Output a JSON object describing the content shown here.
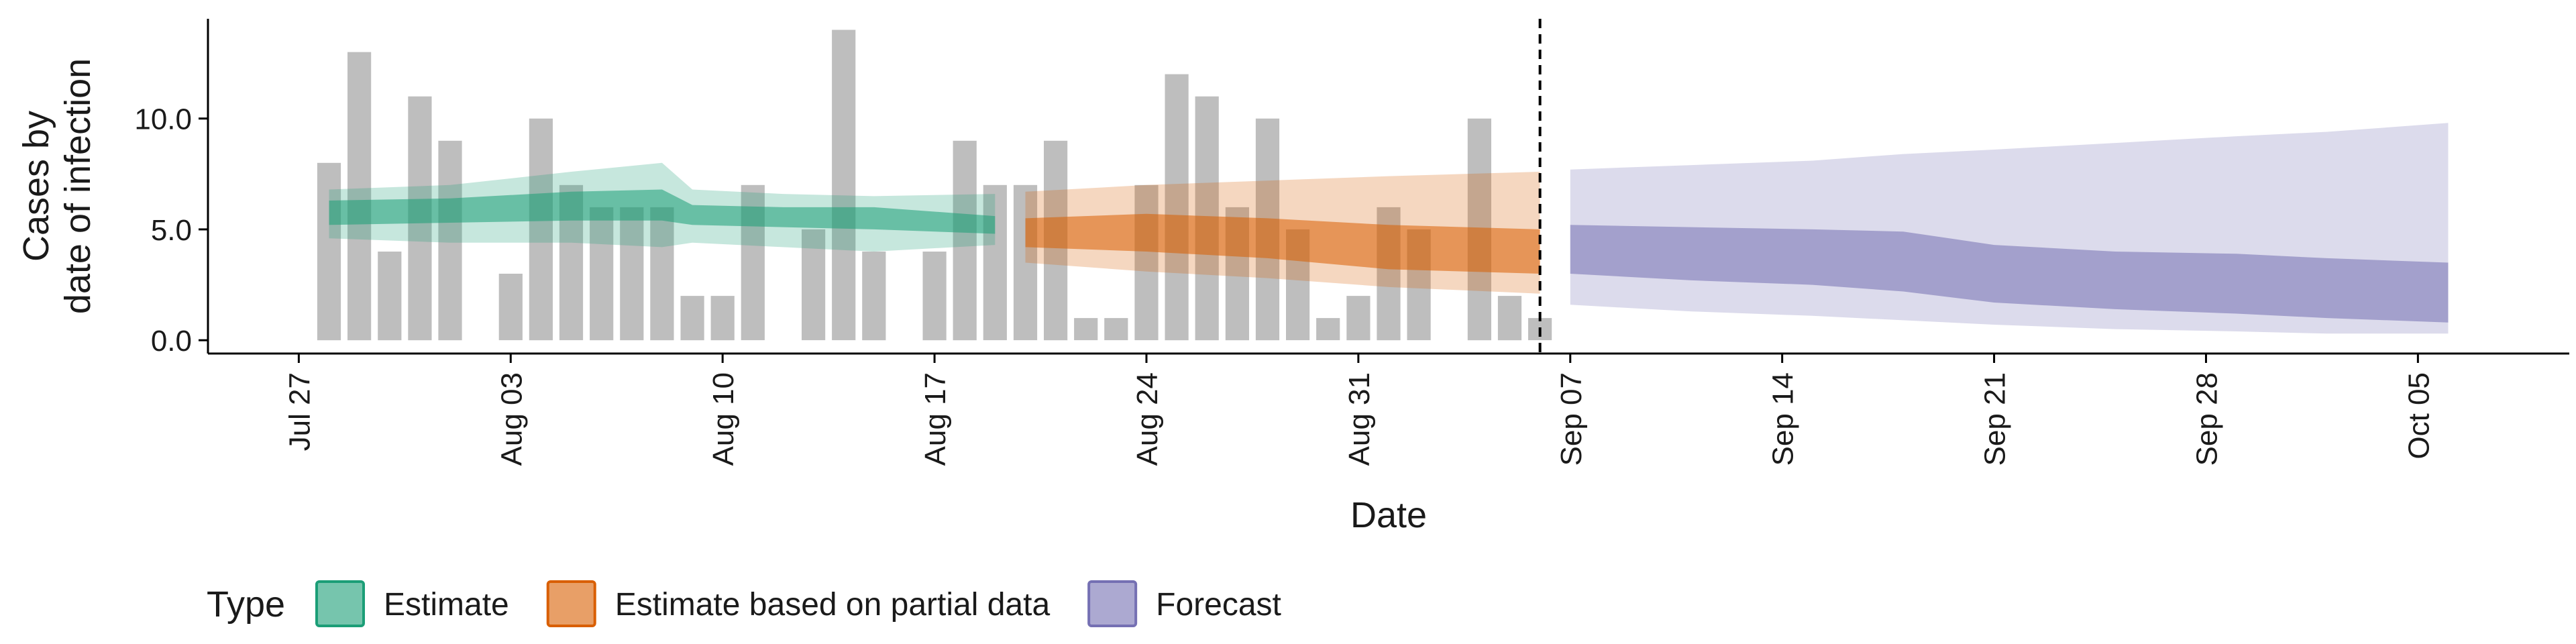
{
  "chart_data": {
    "type": "bar",
    "x_axis_label": "Date",
    "y_axis_label": [
      "Cases by",
      "date of infection"
    ],
    "x_range": [
      "2025-07-24",
      "2025-10-10"
    ],
    "y_range": [
      -0.6,
      14.5
    ],
    "x_ticks": [
      {
        "date": "2025-07-27",
        "label": "Jul 27"
      },
      {
        "date": "2025-08-03",
        "label": "Aug 03"
      },
      {
        "date": "2025-08-10",
        "label": "Aug 10"
      },
      {
        "date": "2025-08-17",
        "label": "Aug 17"
      },
      {
        "date": "2025-08-24",
        "label": "Aug 24"
      },
      {
        "date": "2025-08-31",
        "label": "Aug 31"
      },
      {
        "date": "2025-09-07",
        "label": "Sep 07"
      },
      {
        "date": "2025-09-14",
        "label": "Sep 14"
      },
      {
        "date": "2025-09-21",
        "label": "Sep 21"
      },
      {
        "date": "2025-09-28",
        "label": "Sep 28"
      },
      {
        "date": "2025-10-05",
        "label": "Oct 05"
      }
    ],
    "y_ticks": [
      {
        "value": 0,
        "label": "0.0"
      },
      {
        "value": 5,
        "label": "5.0"
      },
      {
        "value": 10,
        "label": "10.0"
      }
    ],
    "reported_cases": {
      "color": "#bebebe",
      "dates": [
        "2025-07-28",
        "2025-07-29",
        "2025-07-30",
        "2025-07-31",
        "2025-08-01",
        "2025-08-02",
        "2025-08-03",
        "2025-08-04",
        "2025-08-05",
        "2025-08-06",
        "2025-08-07",
        "2025-08-08",
        "2025-08-09",
        "2025-08-10",
        "2025-08-11",
        "2025-08-12",
        "2025-08-13",
        "2025-08-14",
        "2025-08-15",
        "2025-08-16",
        "2025-08-17",
        "2025-08-18",
        "2025-08-19",
        "2025-08-20",
        "2025-08-21",
        "2025-08-22",
        "2025-08-23",
        "2025-08-24",
        "2025-08-25",
        "2025-08-26",
        "2025-08-27",
        "2025-08-28",
        "2025-08-29",
        "2025-08-30",
        "2025-08-31",
        "2025-09-01",
        "2025-09-02",
        "2025-09-03",
        "2025-09-04",
        "2025-09-05",
        "2025-09-06"
      ],
      "values": [
        8,
        13,
        4,
        11,
        9,
        0,
        3,
        10,
        7,
        6,
        6,
        6,
        2,
        2,
        7,
        0,
        5,
        14,
        4,
        0,
        4,
        9,
        7,
        7,
        9,
        1,
        1,
        7,
        12,
        11,
        6,
        10,
        5,
        1,
        2,
        6,
        5,
        0,
        10,
        2,
        1
      ]
    },
    "forecast_divider_date": "2025-09-06",
    "series": [
      {
        "name": "Estimate",
        "color": "#1b9e77",
        "dates": [
          "2025-07-28",
          "2025-08-01",
          "2025-08-05",
          "2025-08-08",
          "2025-08-09",
          "2025-08-12",
          "2025-08-15",
          "2025-08-19"
        ],
        "lower90": [
          4.6,
          4.4,
          4.4,
          4.2,
          4.4,
          4.2,
          4.0,
          4.3
        ],
        "upper90": [
          6.8,
          7.0,
          7.6,
          8.0,
          6.8,
          6.6,
          6.5,
          6.6
        ],
        "lower50": [
          5.2,
          5.3,
          5.4,
          5.4,
          5.2,
          5.1,
          5.0,
          4.8
        ],
        "upper50": [
          6.3,
          6.4,
          6.7,
          6.8,
          6.1,
          6.0,
          6.0,
          5.6
        ]
      },
      {
        "name": "Estimate based on partial data",
        "color": "#d95f02",
        "dates": [
          "2025-08-20",
          "2025-08-24",
          "2025-08-28",
          "2025-09-01",
          "2025-09-06"
        ],
        "lower90": [
          3.5,
          3.1,
          2.8,
          2.4,
          2.1
        ],
        "upper90": [
          6.7,
          7.0,
          7.2,
          7.4,
          7.6
        ],
        "lower50": [
          4.2,
          4.0,
          3.7,
          3.2,
          3.0
        ],
        "upper50": [
          5.5,
          5.7,
          5.5,
          5.2,
          5.0
        ]
      },
      {
        "name": "Forecast",
        "color": "#7570b3",
        "dates": [
          "2025-09-07",
          "2025-09-11",
          "2025-09-15",
          "2025-09-18",
          "2025-09-21",
          "2025-09-25",
          "2025-09-29",
          "2025-10-02",
          "2025-10-06"
        ],
        "lower90": [
          1.6,
          1.3,
          1.1,
          0.9,
          0.7,
          0.5,
          0.4,
          0.3,
          0.3
        ],
        "upper90": [
          7.7,
          7.9,
          8.1,
          8.4,
          8.6,
          8.9,
          9.2,
          9.4,
          9.8
        ],
        "lower50": [
          3.0,
          2.7,
          2.5,
          2.2,
          1.7,
          1.4,
          1.2,
          1.0,
          0.8
        ],
        "upper50": [
          5.2,
          5.1,
          5.0,
          4.9,
          4.3,
          4.0,
          3.9,
          3.7,
          3.5
        ]
      }
    ],
    "legend": {
      "position": "bottom-left",
      "title": "Type",
      "items": [
        {
          "label": "Estimate",
          "color": "#1b9e77"
        },
        {
          "label": "Estimate based on partial data",
          "color": "#d95f02"
        },
        {
          "label": "Forecast",
          "color": "#7570b3"
        }
      ]
    }
  }
}
